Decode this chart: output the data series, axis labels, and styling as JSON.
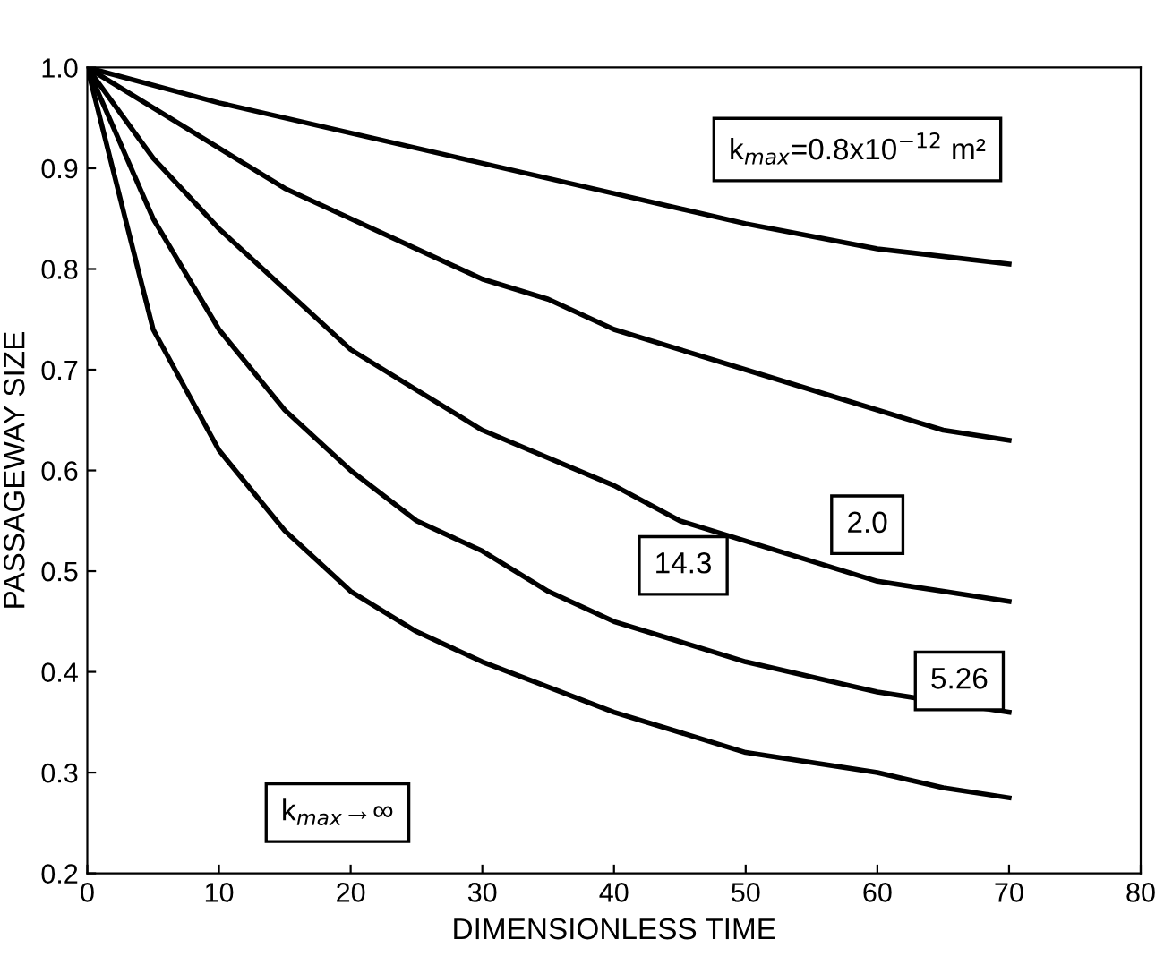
{
  "chart_data": {
    "type": "line",
    "xlabel": "DIMENSIONLESS TIME",
    "ylabel": "PASSAGEWAY SIZE",
    "xlim": [
      0,
      80
    ],
    "xticks": [
      0,
      10,
      20,
      30,
      40,
      50,
      60,
      70,
      80
    ],
    "ylim": [
      0.2,
      1.0
    ],
    "yticks": [
      {
        "value": 0.2,
        "label": "0.2"
      },
      {
        "value": 0.3,
        "label": "0.3"
      },
      {
        "value": 0.4,
        "label": "0.4"
      },
      {
        "value": 0.5,
        "label": "0.5"
      },
      {
        "value": 0.6,
        "label": "0.6"
      },
      {
        "value": 0.7,
        "label": "0.7"
      },
      {
        "value": 0.8,
        "label": "0.8"
      },
      {
        "value": 0.9,
        "label": "0.9"
      },
      {
        "value": 1.0,
        "label": "1.0"
      }
    ],
    "grid": false,
    "marker": "none",
    "line_style": "solid",
    "series": [
      {
        "color": "#000000",
        "x": [
          0,
          10,
          20,
          30,
          40,
          50,
          60,
          70
        ],
        "values": [
          1.0,
          0.965,
          0.935,
          0.905,
          0.875,
          0.845,
          0.82,
          0.805
        ]
      },
      {
        "color": "#000000",
        "x": [
          0,
          5,
          10,
          15,
          20,
          30,
          35,
          40,
          50,
          60,
          65,
          70
        ],
        "values": [
          1.0,
          0.96,
          0.92,
          0.88,
          0.85,
          0.79,
          0.77,
          0.74,
          0.7,
          0.66,
          0.64,
          0.63
        ]
      },
      {
        "color": "#000000",
        "x": [
          0,
          5,
          10,
          15,
          20,
          25,
          30,
          40,
          45,
          50,
          60,
          65,
          70
        ],
        "values": [
          1.0,
          0.91,
          0.84,
          0.78,
          0.72,
          0.68,
          0.64,
          0.585,
          0.55,
          0.53,
          0.49,
          0.48,
          0.47
        ]
      },
      {
        "color": "#000000",
        "x": [
          0,
          5,
          10,
          15,
          20,
          25,
          30,
          35,
          40,
          50,
          60,
          70
        ],
        "values": [
          1.0,
          0.85,
          0.74,
          0.66,
          0.6,
          0.55,
          0.52,
          0.48,
          0.45,
          0.41,
          0.38,
          0.36
        ]
      },
      {
        "color": "#000000",
        "x": [
          0,
          5,
          10,
          15,
          20,
          25,
          30,
          40,
          50,
          60,
          65,
          70
        ],
        "values": [
          1.0,
          0.74,
          0.62,
          0.54,
          0.48,
          0.44,
          0.41,
          0.36,
          0.32,
          0.3,
          0.285,
          0.275
        ]
      }
    ],
    "annotations": [
      "k$_{max}$=0.8x10$^{−12}$ m²",
      "2.0",
      "5.26",
      "14.3",
      "k$_{max}$→∞"
    ]
  }
}
